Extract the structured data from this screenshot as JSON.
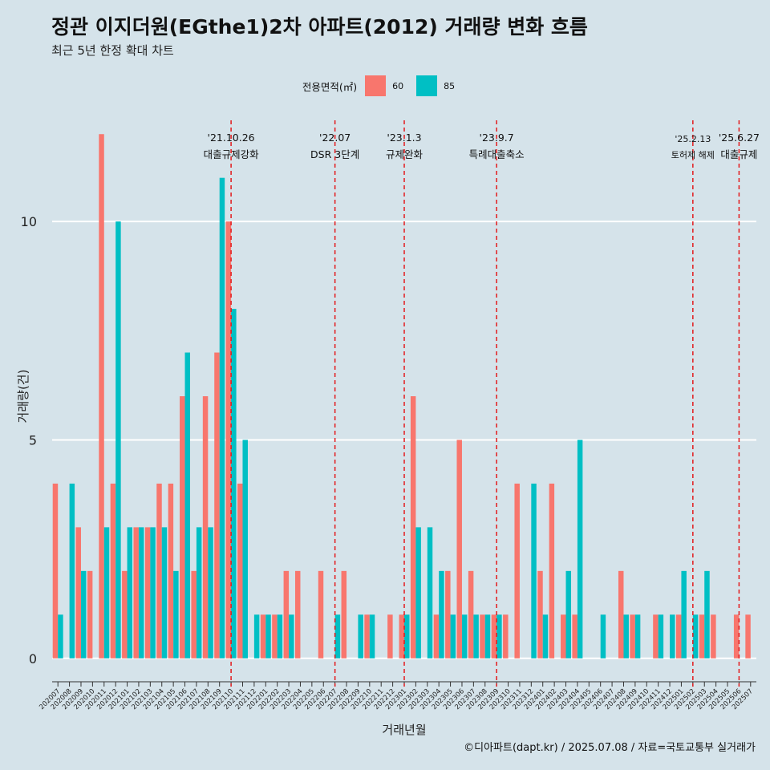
{
  "page": {
    "title": "정관 이지더원(EGthe1)2차 아파트(2012) 거래량 변화 흐름",
    "subtitle": "최근 5년 한정 확대 차트",
    "footer": "©디아파트(dapt.kr) / 2025.07.08 / 자료=국토교통부 실거래가"
  },
  "legend": {
    "title": "전용면적(㎡)",
    "items": [
      {
        "label": "60",
        "color": "#f8766d"
      },
      {
        "label": "85",
        "color": "#00bfc4"
      }
    ]
  },
  "chart_data": {
    "type": "bar",
    "title": "정관 이지더원(EGthe1)2차 아파트(2012) 거래량 변화 흐름",
    "xlabel": "거래년월",
    "ylabel": "거래량(건)",
    "ylim": [
      -0.5,
      12.5
    ],
    "yticks": [
      0,
      5,
      10
    ],
    "categories": [
      "202007",
      "202008",
      "202009",
      "202010",
      "202011",
      "202012",
      "202101",
      "202102",
      "202103",
      "202104",
      "202105",
      "202106",
      "202107",
      "202108",
      "202109",
      "202110",
      "202111",
      "202112",
      "202201",
      "202202",
      "202203",
      "202204",
      "202205",
      "202206",
      "202207",
      "202208",
      "202209",
      "202210",
      "202211",
      "202212",
      "202301",
      "202302",
      "202303",
      "202304",
      "202305",
      "202306",
      "202307",
      "202308",
      "202309",
      "202310",
      "202311",
      "202312",
      "202401",
      "202402",
      "202403",
      "202404",
      "202405",
      "202406",
      "202407",
      "202408",
      "202409",
      "202410",
      "202411",
      "202412",
      "202501",
      "202502",
      "202503",
      "202504",
      "202505",
      "202506",
      "202507"
    ],
    "series": [
      {
        "name": "60",
        "color": "#f8766d",
        "values": [
          4,
          0,
          3,
          2,
          12,
          4,
          2,
          3,
          3,
          4,
          4,
          6,
          2,
          6,
          7,
          10,
          4,
          0,
          1,
          1,
          2,
          2,
          0,
          2,
          0,
          2,
          0,
          1,
          0,
          1,
          1,
          6,
          0,
          1,
          2,
          5,
          2,
          1,
          1,
          1,
          4,
          0,
          2,
          4,
          1,
          1,
          0,
          0,
          0,
          2,
          1,
          0,
          1,
          0,
          1,
          0,
          1,
          1,
          0,
          1,
          1
        ]
      },
      {
        "name": "85",
        "color": "#00bfc4",
        "values": [
          1,
          4,
          2,
          0,
          3,
          10,
          3,
          3,
          3,
          3,
          2,
          7,
          3,
          3,
          11,
          8,
          5,
          1,
          1,
          1,
          1,
          0,
          0,
          0,
          1,
          0,
          1,
          1,
          0,
          0,
          1,
          3,
          3,
          2,
          1,
          1,
          1,
          1,
          1,
          0,
          0,
          4,
          1,
          0,
          2,
          5,
          0,
          1,
          0,
          1,
          1,
          0,
          1,
          1,
          2,
          1,
          2,
          0,
          0,
          0,
          0
        ]
      }
    ],
    "events": [
      {
        "date_label": "'21.10.26",
        "label": "대출규제강화",
        "position": "202110",
        "size": "large"
      },
      {
        "date_label": "'22.07",
        "label": "DSR 3단계",
        "position": "202207",
        "size": "large"
      },
      {
        "date_label": "'23.1.3",
        "label": "규제완화",
        "position": "202301",
        "size": "large"
      },
      {
        "date_label": "'23.9.7",
        "label": "특례대출축소",
        "position": "202309",
        "size": "large"
      },
      {
        "date_label": "'25.2.13",
        "label": "토허제 해제",
        "position": "202502",
        "size": "small"
      },
      {
        "date_label": "'25.6.27",
        "label": "대출규제",
        "position": "202506",
        "size": "large"
      }
    ]
  }
}
